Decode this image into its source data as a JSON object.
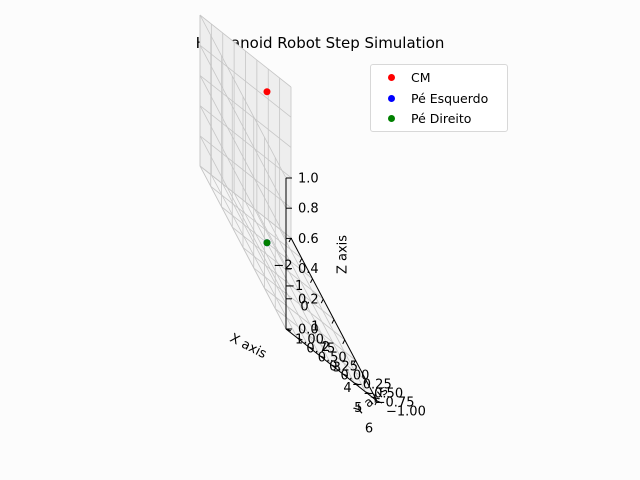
{
  "chart_data": {
    "type": "scatter",
    "projection": "3d",
    "title": "Humanoid Robot Step Simulation",
    "xlabel": "X axis",
    "ylabel": "Y axis",
    "zlabel": "Z axis",
    "xlim": [
      -2,
      6
    ],
    "ylim": [
      -1,
      1
    ],
    "zlim": [
      0,
      1
    ],
    "x_ticks": [
      "−2",
      "−1",
      "0",
      "1",
      "2",
      "3",
      "4",
      "5",
      "6"
    ],
    "y_ticks": [
      "−1.00",
      "−0.75",
      "−0.50",
      "−0.25",
      "0.00",
      "0.25",
      "0.50",
      "0.75",
      "1.00"
    ],
    "z_ticks": [
      "0.0",
      "0.2",
      "0.4",
      "0.6",
      "0.8",
      "1.0"
    ],
    "grid": true,
    "legend_position": "top-right",
    "series": [
      {
        "name": "CM",
        "color": "#ff0000",
        "points": [
          {
            "x": 0,
            "y": 0,
            "z": 1.0
          }
        ]
      },
      {
        "name": "Pé Esquerdo",
        "color": "#0000ff",
        "points": [
          {
            "x": 0,
            "y": 0,
            "z": 0
          }
        ]
      },
      {
        "name": "Pé Direito",
        "color": "#008000",
        "points": [
          {
            "x": 0,
            "y": 0,
            "z": 0
          }
        ]
      }
    ]
  }
}
